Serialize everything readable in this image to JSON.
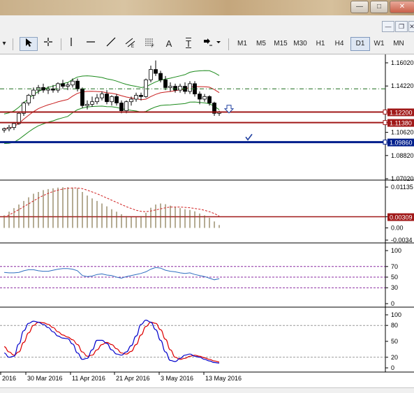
{
  "toolbar": {
    "tools": [
      "cursor-arrow-icon",
      "crosshair-icon",
      "vertical-line-icon",
      "horizontal-line-icon",
      "trendline-icon",
      "equidistant-channel-icon",
      "fibonacci-icon",
      "text-icon",
      "text-label-icon",
      "arrows-icon"
    ],
    "text_tool_label": "A",
    "label_tool_label": "T",
    "timeframes": [
      "M1",
      "M5",
      "M15",
      "M30",
      "H1",
      "H4",
      "D1",
      "W1",
      "MN"
    ],
    "selected_timeframe": "D1"
  },
  "price_panel": {
    "price_ticks": [
      "1.16020",
      "1.14220",
      "1.12200",
      "1.11380",
      "1.10620",
      "1.09860",
      "1.08820",
      "1.07020"
    ],
    "highlighted_levels": [
      {
        "label": "1.12200",
        "color": "#a01818"
      },
      {
        "label": "1.11380",
        "color": "#a01818"
      },
      {
        "label": "1.09860",
        "color": "#001e8c"
      }
    ]
  },
  "macd_panel": {
    "ticks": [
      "0.01135",
      "0.00309",
      "0.00",
      "-0.0034"
    ],
    "level_label": "0.00309"
  },
  "rsi_panel": {
    "ticks": [
      "100",
      "70",
      "50",
      "30",
      "0"
    ],
    "levels": [
      70,
      50,
      30
    ]
  },
  "stoch_panel": {
    "ticks": [
      "100",
      "80",
      "50",
      "20",
      "0"
    ],
    "levels": [
      80,
      20
    ]
  },
  "x_axis": {
    "labels": [
      "2016",
      "30 Mar 2016",
      "11 Apr 2016",
      "21 Apr 2016",
      "3 May 2016",
      "13 May 2016"
    ]
  },
  "colors": {
    "bull_candle": "#ffffff",
    "bear_candle": "#000000",
    "bollinger": "#1b8a1b",
    "ma": "#c81e1e",
    "resistance": "#a01818",
    "support": "#001e8c",
    "rsi_line": "#2f6fc0",
    "stoch_main": "#0000cc",
    "stoch_signal": "#dd0000"
  },
  "chart_data": {
    "type": "candlestick",
    "candles": [
      [
        1.108,
        1.11,
        1.106,
        1.109
      ],
      [
        1.109,
        1.112,
        1.107,
        1.11
      ],
      [
        1.11,
        1.114,
        1.108,
        1.113
      ],
      [
        1.113,
        1.122,
        1.112,
        1.121
      ],
      [
        1.121,
        1.13,
        1.119,
        1.129
      ],
      [
        1.129,
        1.136,
        1.127,
        1.135
      ],
      [
        1.135,
        1.141,
        1.132,
        1.139
      ],
      [
        1.139,
        1.143,
        1.136,
        1.141
      ],
      [
        1.141,
        1.144,
        1.137,
        1.139
      ],
      [
        1.139,
        1.142,
        1.136,
        1.14
      ],
      [
        1.14,
        1.143,
        1.137,
        1.139
      ],
      [
        1.139,
        1.145,
        1.137,
        1.144
      ],
      [
        1.144,
        1.147,
        1.14,
        1.142
      ],
      [
        1.142,
        1.145,
        1.139,
        1.143
      ],
      [
        1.143,
        1.148,
        1.141,
        1.146
      ],
      [
        1.146,
        1.148,
        1.138,
        1.14
      ],
      [
        1.14,
        1.141,
        1.125,
        1.127
      ],
      [
        1.127,
        1.131,
        1.124,
        1.128
      ],
      [
        1.128,
        1.134,
        1.126,
        1.13
      ],
      [
        1.13,
        1.136,
        1.128,
        1.133
      ],
      [
        1.133,
        1.138,
        1.131,
        1.136
      ],
      [
        1.136,
        1.139,
        1.128,
        1.13
      ],
      [
        1.13,
        1.135,
        1.127,
        1.134
      ],
      [
        1.134,
        1.136,
        1.127,
        1.129
      ],
      [
        1.129,
        1.131,
        1.121,
        1.123
      ],
      [
        1.123,
        1.131,
        1.121,
        1.13
      ],
      [
        1.13,
        1.134,
        1.127,
        1.132
      ],
      [
        1.132,
        1.137,
        1.13,
        1.135
      ],
      [
        1.135,
        1.137,
        1.131,
        1.134
      ],
      [
        1.134,
        1.148,
        1.133,
        1.147
      ],
      [
        1.147,
        1.158,
        1.145,
        1.155
      ],
      [
        1.155,
        1.162,
        1.15,
        1.152
      ],
      [
        1.152,
        1.154,
        1.145,
        1.147
      ],
      [
        1.147,
        1.15,
        1.139,
        1.141
      ],
      [
        1.141,
        1.145,
        1.138,
        1.142
      ],
      [
        1.142,
        1.144,
        1.137,
        1.139
      ],
      [
        1.139,
        1.144,
        1.137,
        1.142
      ],
      [
        1.142,
        1.145,
        1.136,
        1.138
      ],
      [
        1.138,
        1.146,
        1.136,
        1.144
      ],
      [
        1.144,
        1.146,
        1.134,
        1.136
      ],
      [
        1.136,
        1.138,
        1.128,
        1.132
      ],
      [
        1.132,
        1.136,
        1.13,
        1.134
      ],
      [
        1.134,
        1.135,
        1.127,
        1.129
      ],
      [
        1.129,
        1.13,
        1.119,
        1.121
      ],
      [
        1.121,
        1.123,
        1.119,
        1.122
      ]
    ],
    "macd_hist": [
      0.0035,
      0.0045,
      0.0055,
      0.0065,
      0.0075,
      0.0085,
      0.0095,
      0.01,
      0.0105,
      0.0108,
      0.011,
      0.0112,
      0.0113,
      0.0113,
      0.0112,
      0.011,
      0.01,
      0.009,
      0.0082,
      0.0075,
      0.0068,
      0.006,
      0.0052,
      0.0045,
      0.0038,
      0.0033,
      0.003,
      0.003,
      0.0033,
      0.0042,
      0.0056,
      0.0065,
      0.0068,
      0.0066,
      0.0062,
      0.0058,
      0.0055,
      0.0052,
      0.005,
      0.0046,
      0.004,
      0.0035,
      0.0028,
      0.0018,
      0.0008
    ],
    "macd_signal": [
      0.003,
      0.0036,
      0.0043,
      0.0051,
      0.0059,
      0.0067,
      0.0075,
      0.0083,
      0.009,
      0.0096,
      0.0101,
      0.0105,
      0.0108,
      0.011,
      0.0111,
      0.0111,
      0.0109,
      0.0105,
      0.01,
      0.0095,
      0.0089,
      0.0083,
      0.0077,
      0.0071,
      0.0065,
      0.0059,
      0.0054,
      0.0049,
      0.0046,
      0.0045,
      0.0047,
      0.005,
      0.0053,
      0.0056,
      0.0058,
      0.0058,
      0.0058,
      0.0057,
      0.0056,
      0.0054,
      0.0052,
      0.0049,
      0.0045,
      0.004,
      0.0033
    ],
    "rsi": [
      59,
      58,
      58,
      59,
      62,
      64,
      64,
      62,
      61,
      61,
      63,
      65,
      66,
      66,
      65,
      62,
      53,
      51,
      52,
      55,
      56,
      54,
      53,
      50,
      48,
      51,
      53,
      55,
      57,
      60,
      65,
      68,
      67,
      63,
      61,
      60,
      58,
      57,
      58,
      55,
      53,
      51,
      48,
      45,
      47
    ],
    "stoch_main": [
      28,
      20,
      22,
      45,
      70,
      84,
      88,
      86,
      82,
      76,
      68,
      60,
      56,
      55,
      45,
      28,
      16,
      18,
      34,
      52,
      52,
      46,
      34,
      26,
      24,
      30,
      42,
      60,
      82,
      90,
      86,
      72,
      52,
      30,
      14,
      12,
      18,
      24,
      26,
      22,
      20,
      16,
      13,
      10,
      9
    ],
    "stoch_signal": [
      40,
      30,
      24,
      30,
      48,
      66,
      80,
      86,
      85,
      82,
      76,
      68,
      62,
      58,
      53,
      44,
      30,
      22,
      24,
      34,
      44,
      48,
      44,
      36,
      28,
      26,
      31,
      44,
      62,
      78,
      86,
      84,
      72,
      54,
      34,
      20,
      16,
      18,
      22,
      24,
      22,
      19,
      16,
      13,
      11
    ]
  }
}
